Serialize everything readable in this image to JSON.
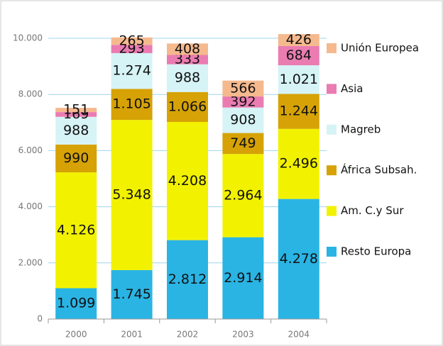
{
  "chart_data": {
    "type": "stacked_bar",
    "categories": [
      "2000",
      "2001",
      "2002",
      "2003",
      "2004"
    ],
    "series": [
      {
        "name": "Resto Europa",
        "color": "#2ab4e4",
        "values": [
          1099,
          1745,
          2812,
          2914,
          4278
        ],
        "value_labels": [
          "1.099",
          "1.745",
          "2.812",
          "2.914",
          "4.278"
        ]
      },
      {
        "name": "Am. C.y Sur",
        "color": "#f2f200",
        "values": [
          4126,
          5348,
          4208,
          2964,
          2496
        ],
        "value_labels": [
          "4.126",
          "5.348",
          "4.208",
          "2.964",
          "2.496"
        ]
      },
      {
        "name": "África Subsah.",
        "color": "#d6a206",
        "values": [
          990,
          1105,
          1066,
          749,
          1244
        ],
        "value_labels": [
          "990",
          "1.105",
          "1.066",
          "749",
          "1.244"
        ]
      },
      {
        "name": "Magreb",
        "color": "#d6f3f6",
        "values": [
          988,
          1274,
          988,
          908,
          1021
        ],
        "value_labels": [
          "988",
          "1.274",
          "988",
          "908",
          "1.021"
        ]
      },
      {
        "name": "Asia",
        "color": "#ea7cb2",
        "values": [
          169,
          293,
          333,
          392,
          684
        ],
        "value_labels": [
          "169",
          "293",
          "333",
          "392",
          "684"
        ]
      },
      {
        "name": "Unión Europea",
        "color": "#f5b98e",
        "values": [
          151,
          265,
          408,
          566,
          426
        ],
        "value_labels": [
          "151",
          "265",
          "408",
          "566",
          "426"
        ]
      }
    ],
    "ylim": [
      0,
      10000
    ],
    "yticks": [
      0,
      {
        "value": 2000,
        "label": "2.000"
      },
      {
        "value": 4000,
        "label": "4.000"
      },
      {
        "value": 6000,
        "label": "6.000"
      },
      {
        "value": 8000,
        "label": "8.000"
      },
      {
        "value": 10000,
        "label": "10.000"
      }
    ],
    "grid": true,
    "legend": "right"
  }
}
